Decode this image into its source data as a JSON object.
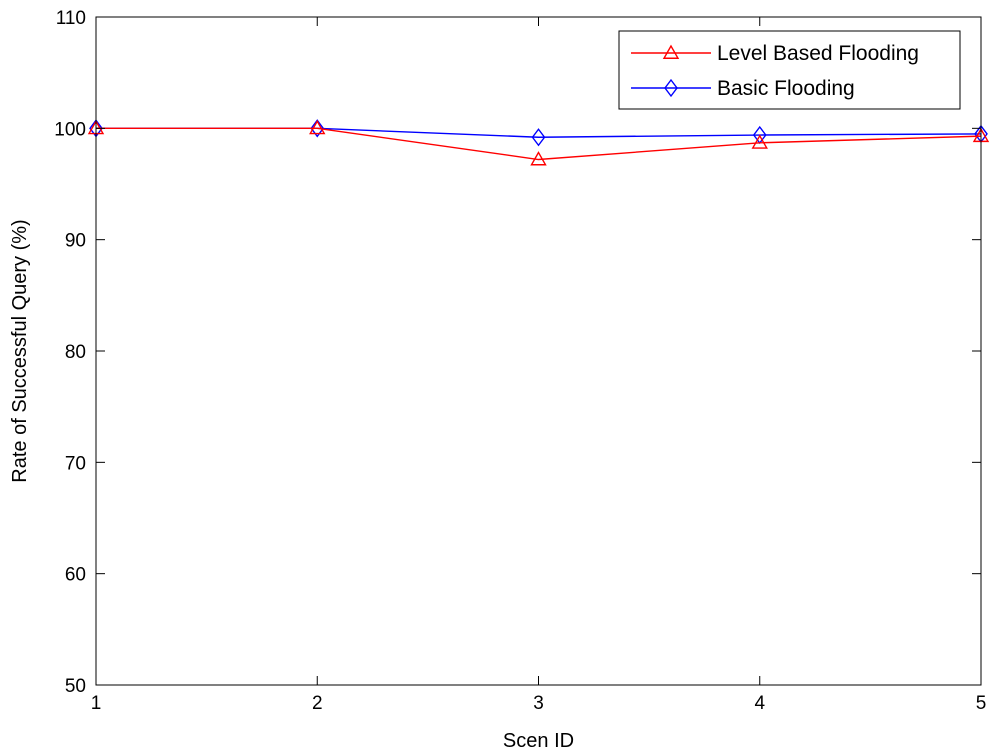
{
  "chart_data": {
    "type": "line",
    "title": "",
    "xlabel": "Scen ID",
    "ylabel": "Rate of Successful Query (%)",
    "x": [
      1,
      2,
      3,
      4,
      5
    ],
    "xlim": [
      1,
      5
    ],
    "ylim": [
      50,
      110
    ],
    "xticks": [
      "1",
      "2",
      "3",
      "4",
      "5"
    ],
    "yticks": [
      "50",
      "60",
      "70",
      "80",
      "90",
      "100",
      "110"
    ],
    "grid": false,
    "legend_position": "top-right",
    "series": [
      {
        "name": "Level Based Flooding",
        "values": [
          100,
          100,
          97.2,
          98.7,
          99.3
        ],
        "color": "#ff0000",
        "marker": "triangle"
      },
      {
        "name": "Basic Flooding",
        "values": [
          100,
          100,
          99.2,
          99.4,
          99.5
        ],
        "color": "#0000ff",
        "marker": "diamond"
      }
    ]
  }
}
